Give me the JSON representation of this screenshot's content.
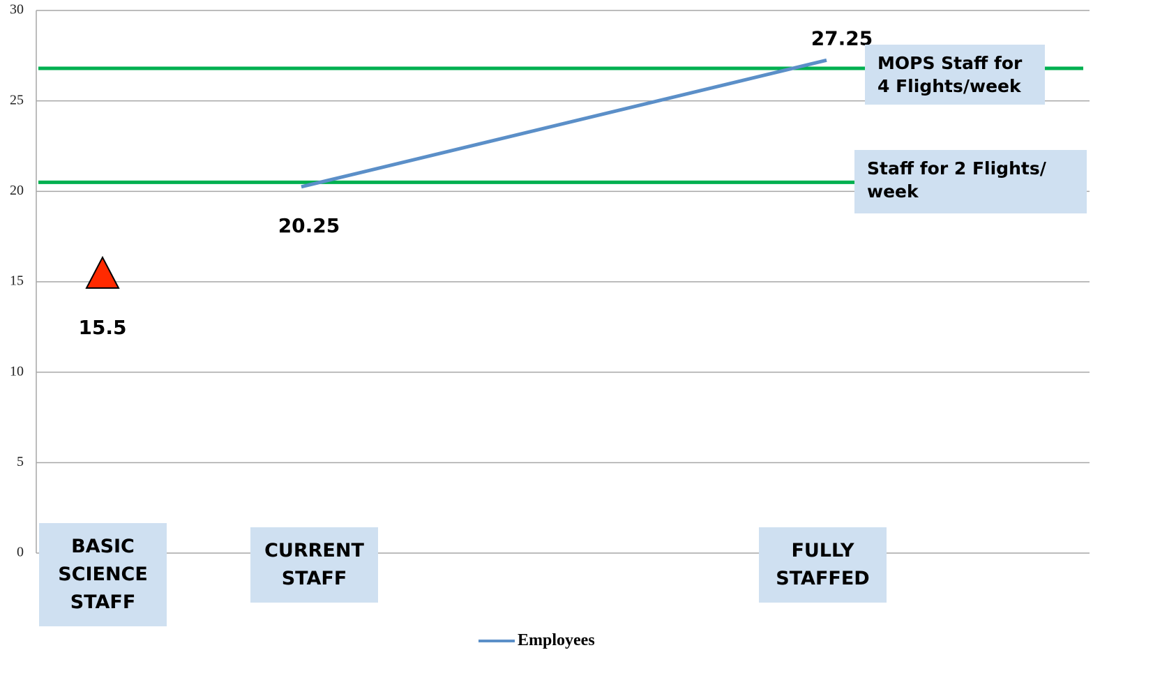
{
  "chart_data": {
    "type": "line",
    "categories": [
      "BASIC SCIENCE STAFF",
      "CURRENT STAFF",
      "FULLY STAFFED"
    ],
    "series": [
      {
        "name": "Employees",
        "color": "#5b8fc8",
        "values": [
          null,
          20.25,
          27.25
        ]
      }
    ],
    "markers": {
      "marker": "triangle",
      "color": "#ff2a00",
      "values": [
        15.5,
        null,
        null
      ]
    },
    "reference_lines": [
      {
        "value": 26.8,
        "label": "MOPS Staff for 4 Flights/week",
        "color": "#00b050"
      },
      {
        "value": 20.5,
        "label": "Staff for 2 Flights/ week",
        "color": "#00b050"
      }
    ],
    "ylim": [
      0,
      30
    ],
    "yticks": [
      0,
      5,
      10,
      15,
      20,
      25,
      30
    ],
    "grid": true,
    "legend": "bottom"
  }
}
